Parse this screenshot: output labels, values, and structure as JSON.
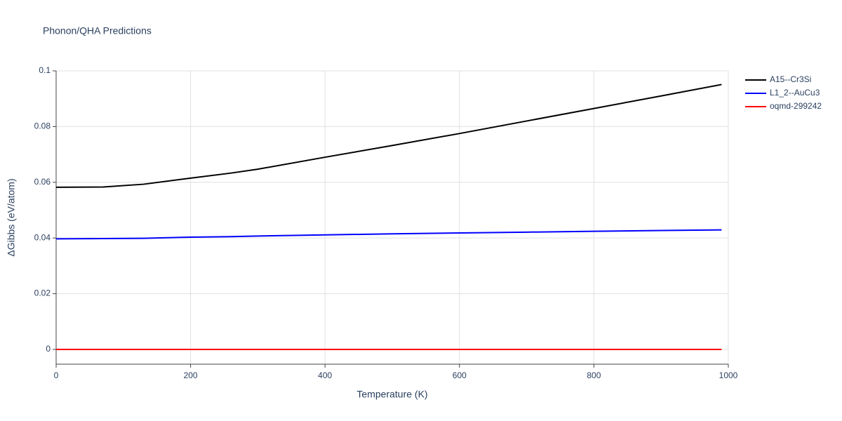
{
  "chart_data": {
    "type": "line",
    "title": "Phonon/QHA Predictions",
    "x_label": "Temperature (K)",
    "y_label": "ΔGibbs (eV/atom)",
    "x": [
      0,
      70,
      130,
      200,
      260,
      300,
      400,
      500,
      600,
      700,
      800,
      900,
      990
    ],
    "series": [
      {
        "name": "A15--Cr3Si",
        "color": "#000000",
        "values": [
          0.0582,
          0.0583,
          0.0593,
          0.0615,
          0.0633,
          0.0647,
          0.069,
          0.0732,
          0.0775,
          0.082,
          0.0865,
          0.091,
          0.0951
        ]
      },
      {
        "name": "L1_2--AuCu3",
        "color": "#0000ff",
        "values": [
          0.0397,
          0.0398,
          0.0399,
          0.0403,
          0.0405,
          0.0407,
          0.0411,
          0.0415,
          0.0418,
          0.0421,
          0.0424,
          0.0427,
          0.0429
        ]
      },
      {
        "name": "oqmd-299242",
        "color": "#ff0000",
        "values": [
          0,
          0,
          0,
          0,
          0,
          0,
          0,
          0,
          0,
          0,
          0,
          0,
          0
        ]
      }
    ],
    "xlim": [
      0,
      1000
    ],
    "xticks": [
      0,
      200,
      400,
      600,
      800,
      1000
    ],
    "ylim": [
      -0.0053,
      0.1
    ],
    "yticks": [
      0,
      0.02,
      0.04,
      0.06,
      0.08,
      0.1
    ],
    "grid": true,
    "legend": "right"
  }
}
